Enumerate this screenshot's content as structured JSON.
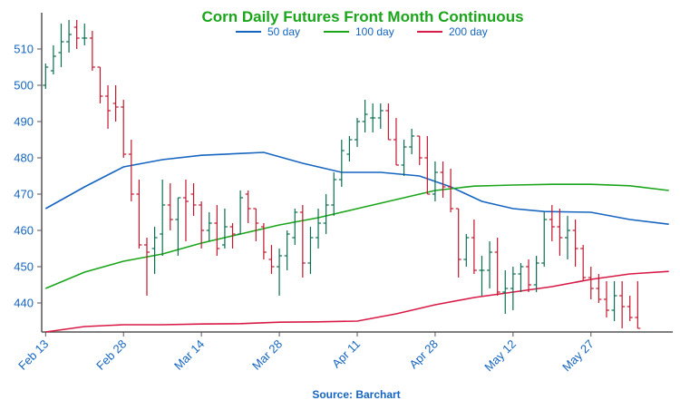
{
  "chart_data": {
    "type": "ohlc",
    "title": "Corn Daily Futures Front Month Continuous",
    "source": "Source: Barchart",
    "ylim": [
      432,
      520
    ],
    "yticks": [
      440,
      450,
      460,
      470,
      480,
      490,
      500,
      510
    ],
    "xlabels": [
      {
        "label": "Feb 13",
        "index": 0
      },
      {
        "label": "Feb 28",
        "index": 10
      },
      {
        "label": "Mar 14",
        "index": 20
      },
      {
        "label": "Mar 28",
        "index": 30
      },
      {
        "label": "Apr 11",
        "index": 40
      },
      {
        "label": "Apr 28",
        "index": 50
      },
      {
        "label": "May 12",
        "index": 60
      },
      {
        "label": "May 27",
        "index": 70
      }
    ],
    "n_slots": 81,
    "grid": false,
    "legend_position": "top-center",
    "colors": {
      "up": "#0b6e4f",
      "down": "#c0182e",
      "ma50": "#1565c0",
      "ma100": "#1aa51a",
      "ma200": "#d81b46",
      "axis": "#555555"
    },
    "ohlc": [
      [
        500,
        506,
        499,
        505
      ],
      [
        504,
        511,
        503,
        508
      ],
      [
        509,
        517,
        505,
        512
      ],
      [
        512,
        518,
        509,
        514
      ],
      [
        516,
        518,
        510,
        513
      ],
      [
        513,
        517,
        511,
        513
      ],
      [
        513,
        515,
        504,
        505
      ],
      [
        505,
        505,
        495,
        497
      ],
      [
        497,
        500,
        488,
        493
      ],
      [
        495,
        500,
        490,
        494
      ],
      [
        494,
        496,
        480,
        481
      ],
      [
        481,
        485,
        468,
        470
      ],
      [
        470,
        474,
        455,
        456
      ],
      [
        456,
        458,
        442,
        454
      ],
      [
        455,
        461,
        448,
        458
      ],
      [
        459,
        474,
        453,
        467
      ],
      [
        467,
        473,
        460,
        463
      ],
      [
        463,
        469,
        453,
        469
      ],
      [
        469,
        474,
        457,
        468
      ],
      [
        470,
        473,
        464,
        467
      ],
      [
        467,
        468,
        455,
        460
      ],
      [
        460,
        465,
        457,
        462
      ],
      [
        462,
        467,
        453,
        455
      ],
      [
        456,
        466,
        455,
        461
      ],
      [
        461,
        462,
        455,
        459
      ],
      [
        459,
        471,
        459,
        469
      ],
      [
        470,
        471,
        462,
        466
      ],
      [
        466,
        466,
        457,
        462
      ],
      [
        461,
        462,
        452,
        454
      ],
      [
        452,
        456,
        448,
        450
      ],
      [
        450,
        455,
        442,
        453
      ],
      [
        453,
        460,
        449,
        459
      ],
      [
        458,
        466,
        456,
        465
      ],
      [
        465,
        467,
        447,
        451
      ],
      [
        451,
        461,
        448,
        458
      ],
      [
        458,
        466,
        455,
        462
      ],
      [
        462,
        470,
        459,
        467
      ],
      [
        467,
        476,
        464,
        474
      ],
      [
        474,
        485,
        472,
        482
      ],
      [
        481,
        486,
        479,
        485
      ],
      [
        485,
        491,
        483,
        490
      ],
      [
        490,
        496,
        487,
        492
      ],
      [
        491,
        495,
        487,
        491
      ],
      [
        491,
        495,
        488,
        493
      ],
      [
        493,
        495,
        485,
        485
      ],
      [
        485,
        491,
        478,
        478
      ],
      [
        478,
        485,
        475,
        483
      ],
      [
        483,
        488,
        481,
        486
      ],
      [
        486,
        486,
        478,
        480
      ],
      [
        480,
        486,
        470,
        470
      ],
      [
        470,
        479,
        468,
        476
      ],
      [
        476,
        479,
        469,
        472
      ],
      [
        472,
        477,
        465,
        466
      ],
      [
        466,
        466,
        447,
        452
      ],
      [
        452,
        459,
        450,
        458
      ],
      [
        458,
        463,
        448,
        449
      ],
      [
        449,
        453,
        442,
        449
      ],
      [
        449,
        457,
        444,
        454
      ],
      [
        454,
        458,
        442,
        443
      ],
      [
        443,
        449,
        437,
        444
      ],
      [
        444,
        450,
        438,
        448
      ],
      [
        448,
        451,
        443,
        450
      ],
      [
        450,
        452,
        443,
        445
      ],
      [
        445,
        453,
        443,
        451
      ],
      [
        451,
        465,
        450,
        463
      ],
      [
        463,
        467,
        457,
        461
      ],
      [
        461,
        466,
        453,
        458
      ],
      [
        458,
        464,
        452,
        460
      ],
      [
        460,
        463,
        450,
        455
      ],
      [
        455,
        456,
        446,
        447
      ],
      [
        447,
        450,
        441,
        444
      ],
      [
        444,
        448,
        440,
        441
      ],
      [
        441,
        446,
        436,
        438
      ],
      [
        438,
        446,
        435,
        442
      ],
      [
        442,
        446,
        433,
        439
      ],
      [
        439,
        442,
        435,
        436
      ],
      [
        436,
        446,
        433,
        433
      ]
    ],
    "series": [
      {
        "name": "50 day",
        "color": "#1565c0",
        "points": [
          [
            0,
            466
          ],
          [
            5,
            472
          ],
          [
            10,
            477.5
          ],
          [
            15,
            479.5
          ],
          [
            20,
            480.7
          ],
          [
            25,
            481.2
          ],
          [
            28,
            481.5
          ],
          [
            33,
            478.5
          ],
          [
            38,
            476
          ],
          [
            43,
            476
          ],
          [
            48,
            475
          ],
          [
            52,
            472
          ],
          [
            56,
            468
          ],
          [
            60,
            466
          ],
          [
            64,
            465.2
          ],
          [
            70,
            465
          ],
          [
            75,
            463
          ],
          [
            80,
            461.7
          ]
        ]
      },
      {
        "name": "100 day",
        "color": "#1aa51a",
        "points": [
          [
            0,
            444
          ],
          [
            5,
            448.5
          ],
          [
            10,
            451.5
          ],
          [
            15,
            453.5
          ],
          [
            20,
            456.5
          ],
          [
            25,
            459
          ],
          [
            30,
            461.5
          ],
          [
            35,
            463.5
          ],
          [
            40,
            466
          ],
          [
            45,
            468.5
          ],
          [
            50,
            471
          ],
          [
            55,
            472.2
          ],
          [
            60,
            472.5
          ],
          [
            65,
            472.7
          ],
          [
            70,
            472.7
          ],
          [
            75,
            472.3
          ],
          [
            80,
            471
          ]
        ]
      },
      {
        "name": "200 day",
        "color": "#d81b46",
        "points": [
          [
            0,
            432
          ],
          [
            5,
            433.5
          ],
          [
            10,
            434
          ],
          [
            15,
            434
          ],
          [
            20,
            434.2
          ],
          [
            25,
            434.3
          ],
          [
            30,
            434.7
          ],
          [
            35,
            434.8
          ],
          [
            40,
            435
          ],
          [
            45,
            437
          ],
          [
            50,
            439.5
          ],
          [
            55,
            441.5
          ],
          [
            60,
            443
          ],
          [
            65,
            444.5
          ],
          [
            70,
            446.5
          ],
          [
            75,
            448
          ],
          [
            80,
            448.7
          ]
        ]
      }
    ]
  }
}
